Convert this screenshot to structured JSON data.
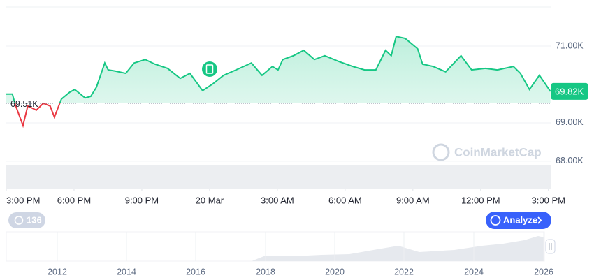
{
  "chart_data": {
    "type": "line",
    "x": [
      0,
      0.27,
      0.4,
      0.74,
      0.95,
      1.33,
      1.64,
      1.94,
      2.13,
      2.44,
      2.81,
      3.03,
      3.49,
      3.74,
      3.99,
      4.36,
      4.51,
      4.82,
      5.29,
      5.66,
      6.15,
      6.58,
      7.14,
      7.7,
      8.13,
      8.69,
      9.15,
      9.62,
      10.17,
      10.85,
      11.32,
      11.78,
      12.03,
      12.24,
      12.71,
      13.17,
      13.64,
      14.1,
      14.72,
      15.34,
      15.86,
      16.36,
      16.79,
      17.04,
      17.26,
      17.66,
      18.21,
      18.43,
      18.9,
      19.45,
      20.13,
      20.6,
      21.21,
      21.74,
      22.45,
      22.76,
      23.16,
      23.6,
      24.09
    ],
    "values": [
      69.75,
      69.75,
      69.47,
      68.93,
      69.44,
      69.33,
      69.51,
      69.44,
      69.15,
      69.62,
      69.8,
      69.87,
      69.65,
      69.69,
      69.93,
      70.56,
      70.38,
      70.35,
      70.29,
      70.56,
      70.65,
      70.53,
      70.42,
      70.16,
      70.29,
      69.84,
      70.02,
      70.24,
      70.38,
      70.56,
      70.24,
      70.47,
      70.38,
      70.65,
      70.75,
      70.89,
      70.65,
      70.75,
      70.6,
      70.47,
      70.38,
      70.38,
      70.89,
      70.75,
      71.25,
      71.2,
      70.93,
      70.53,
      70.47,
      70.33,
      70.75,
      70.38,
      70.42,
      70.38,
      70.47,
      70.29,
      69.87,
      70.24,
      69.82
    ],
    "color": "#16c784",
    "below_color": "#ea3943",
    "reference": {
      "value": 69.51,
      "label": "69.51K"
    },
    "current": {
      "value": 69.82,
      "label": "69.82K"
    },
    "xlim": [
      0,
      24.1
    ],
    "xticks": [
      {
        "value": 0,
        "label": "3:00 PM"
      },
      {
        "value": 3,
        "label": "6:00 PM"
      },
      {
        "value": 6,
        "label": "9:00 PM"
      },
      {
        "value": 9,
        "label": "20 Mar"
      },
      {
        "value": 12,
        "label": "3:00 AM"
      },
      {
        "value": 15,
        "label": "6:00 AM"
      },
      {
        "value": 18,
        "label": "9:00 AM"
      },
      {
        "value": 21,
        "label": "12:00 PM"
      },
      {
        "value": 24,
        "label": "3:00 PM"
      }
    ],
    "ylim": [
      67.98,
      72.02
    ],
    "yticks": [
      {
        "value": 71,
        "label": "71.00K"
      },
      {
        "value": 69,
        "label": "69.00K"
      },
      {
        "value": 68,
        "label": "68.00K"
      }
    ],
    "grid": true
  },
  "ui": {
    "watermark": "CoinMarketCap",
    "history_count": 136,
    "analyze_button": "Analyze",
    "navigator_labels": [
      "2012",
      "2014",
      "2016",
      "2018",
      "2020",
      "2022",
      "2024",
      "2026"
    ]
  }
}
